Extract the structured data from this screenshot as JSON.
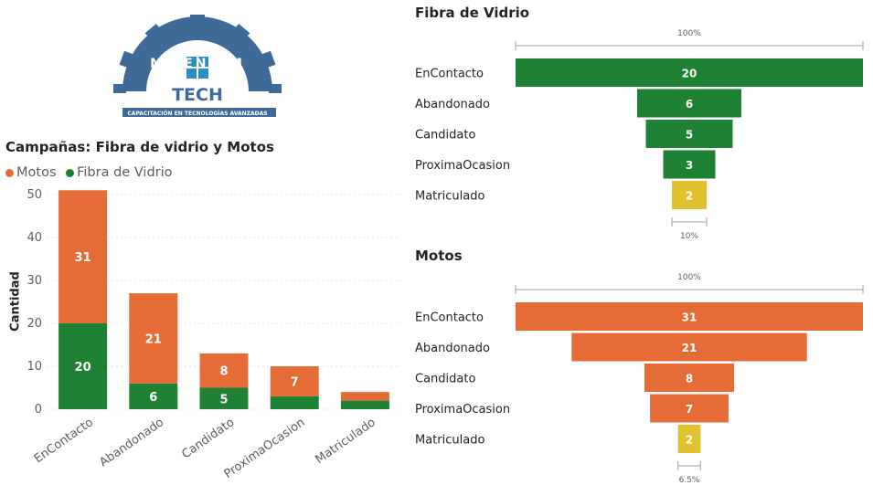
{
  "logo": {
    "wordmark": "MILENIUM",
    "sub": "TECH",
    "tagline": "CAPACITACIÓN EN TECNOLOGÍAS AVANZADAS"
  },
  "colors": {
    "motos": "#E66C37",
    "fibra": "#1F8134",
    "last": "#E0C22E",
    "grid": "#E6E6E6",
    "text": "#605E5C",
    "logo": "#3F6A97"
  },
  "chart_data": [
    {
      "type": "bar",
      "stacked": true,
      "title": "Campañas: Fibra de vidrio y Motos",
      "legend": [
        "Motos",
        "Fibra de Vidrio"
      ],
      "legend_position": "top-left",
      "ylabel": "Cantidad",
      "ylim": [
        0,
        50
      ],
      "yticks": [
        0,
        10,
        20,
        30,
        40,
        50
      ],
      "categories": [
        "EnContacto",
        "Abandonado",
        "Candidato",
        "ProximaOcasion",
        "Matriculado"
      ],
      "series": [
        {
          "name": "Fibra de Vidrio",
          "values": [
            20,
            6,
            5,
            3,
            2
          ],
          "labels": [
            "20",
            "6",
            "5",
            "",
            ""
          ]
        },
        {
          "name": "Motos",
          "values": [
            31,
            21,
            8,
            7,
            2
          ],
          "labels": [
            "31",
            "21",
            "8",
            "7",
            ""
          ]
        }
      ]
    },
    {
      "type": "funnel",
      "title": "Fibra de Vidrio",
      "categories": [
        "EnContacto",
        "Abandonado",
        "Candidato",
        "ProximaOcasion",
        "Matriculado"
      ],
      "values": [
        20,
        6,
        5,
        3,
        2
      ],
      "top_percent": "100%",
      "bottom_percent": "10%"
    },
    {
      "type": "funnel",
      "title": "Motos",
      "categories": [
        "EnContacto",
        "Abandonado",
        "Candidato",
        "ProximaOcasion",
        "Matriculado"
      ],
      "values": [
        31,
        21,
        8,
        7,
        2
      ],
      "top_percent": "100%",
      "bottom_percent": "6.5%"
    }
  ]
}
